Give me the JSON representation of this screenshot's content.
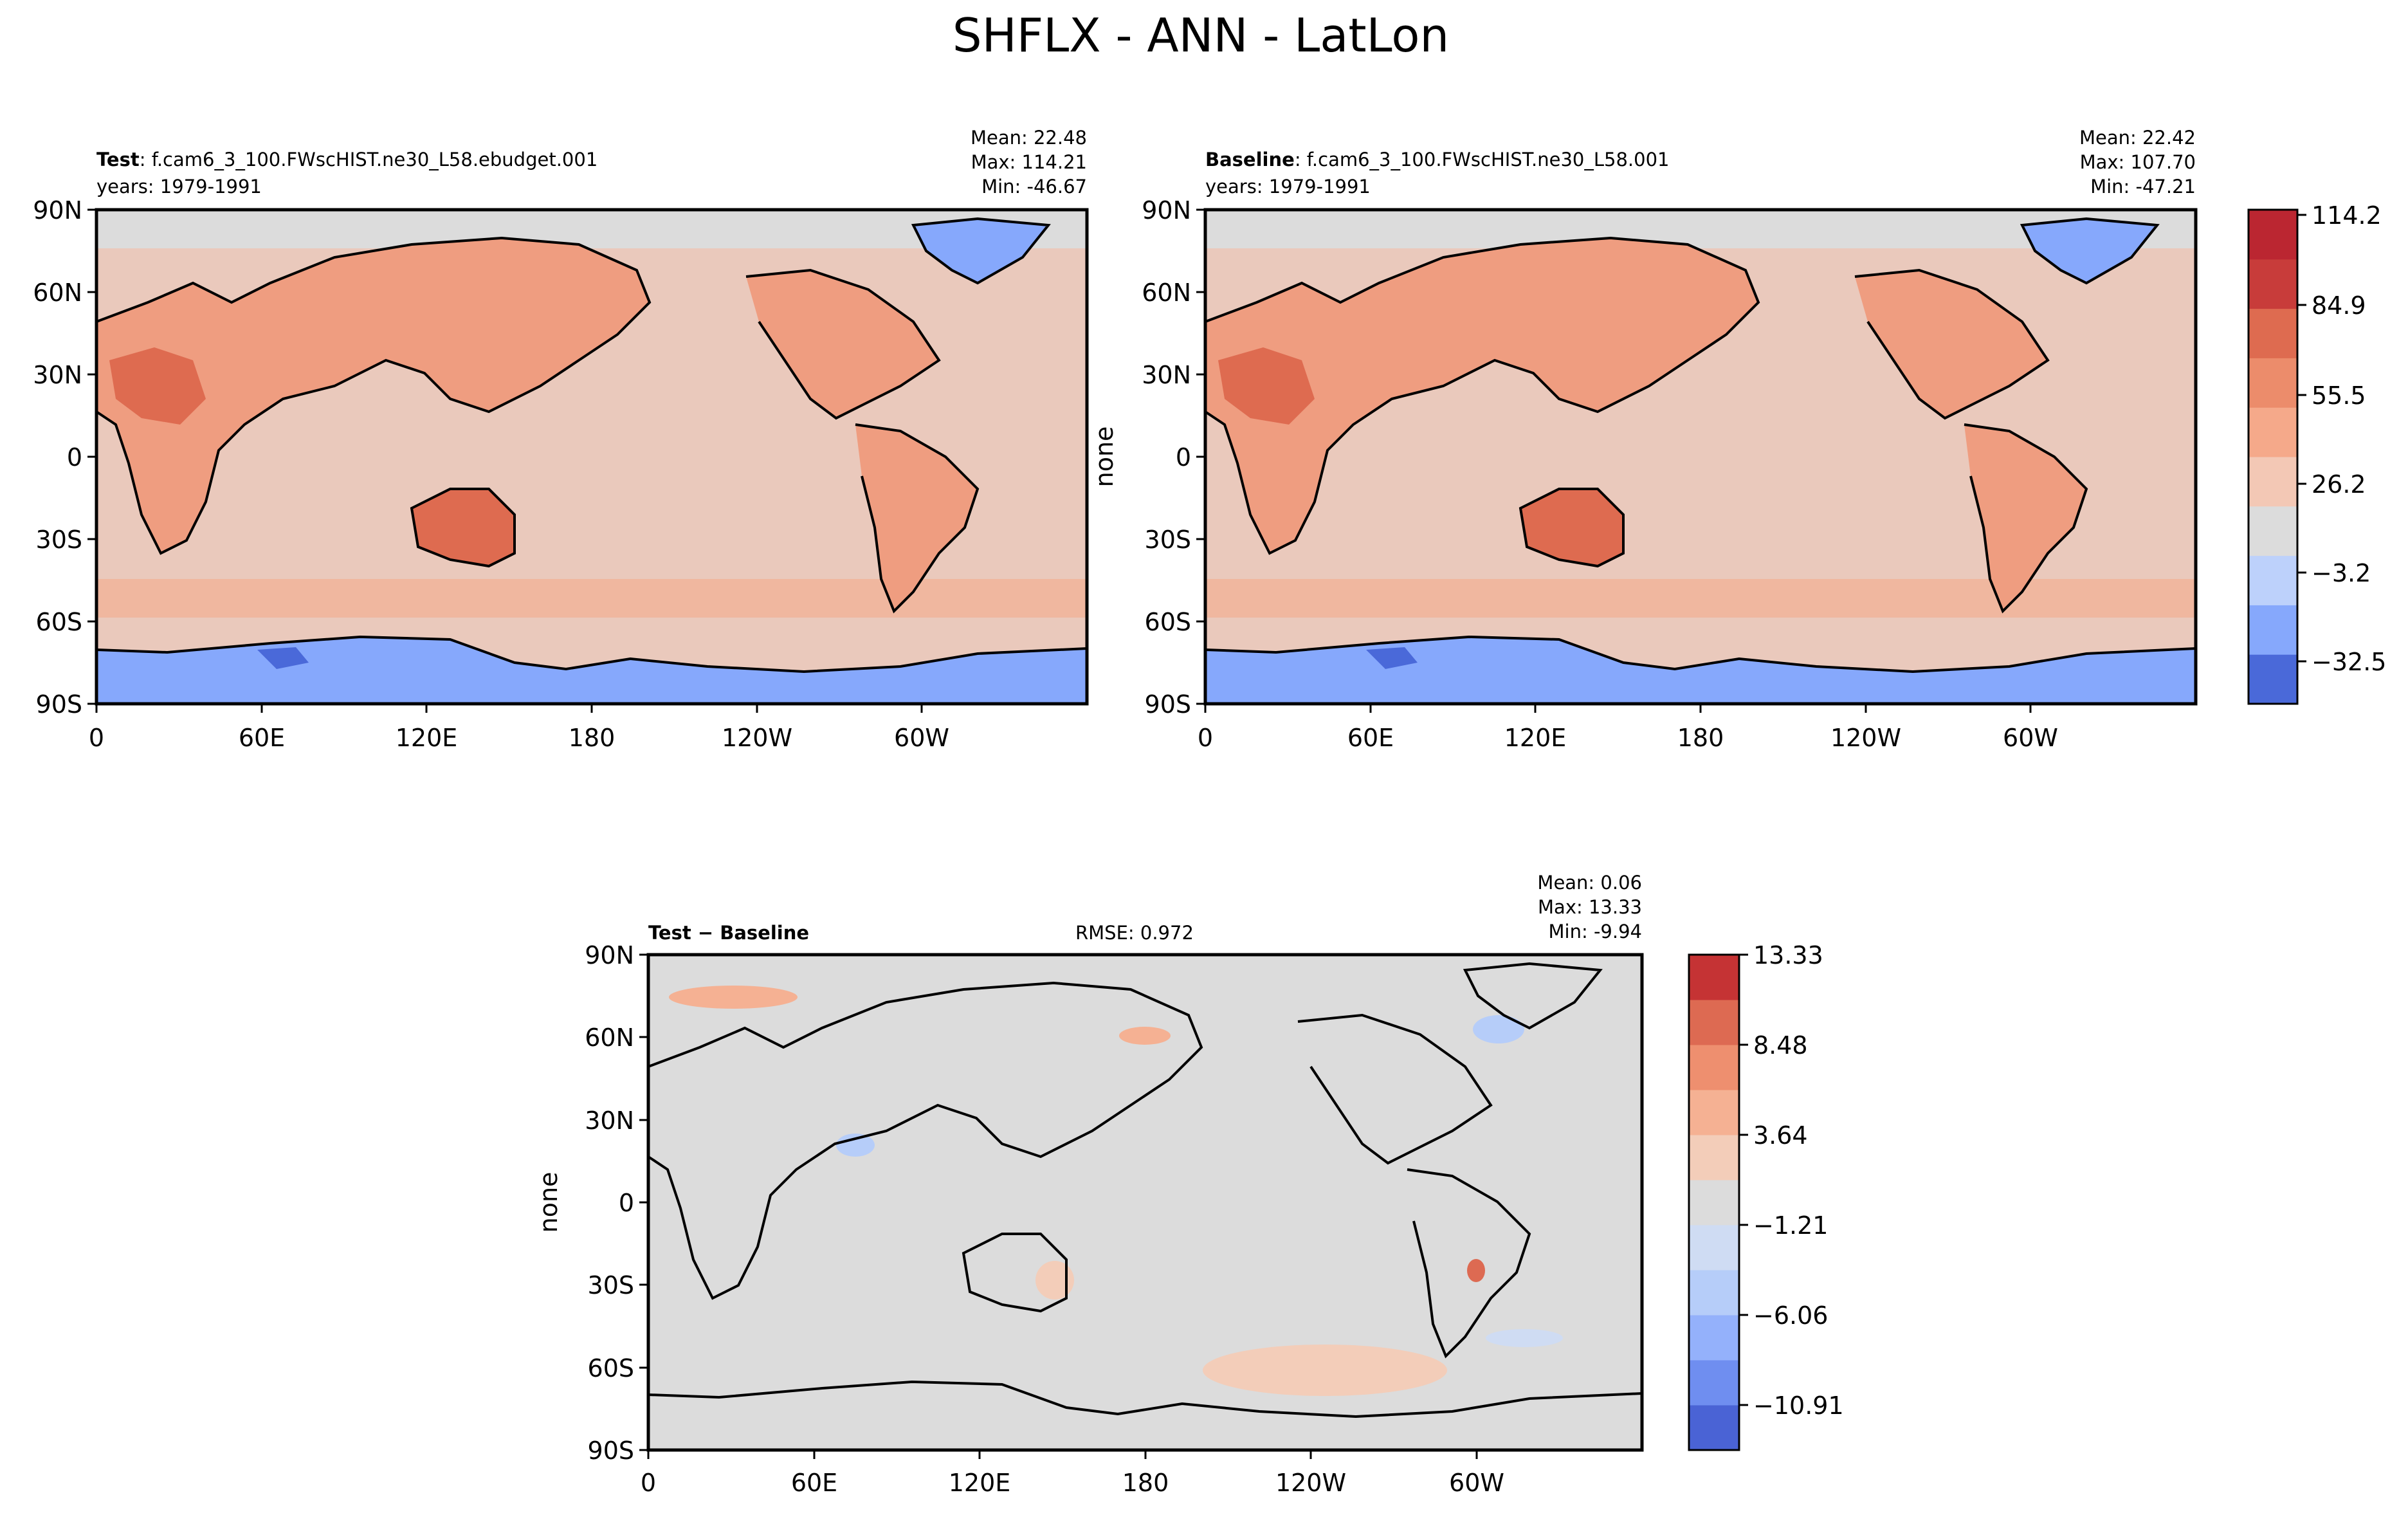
{
  "figure": {
    "title": "SHFLX - ANN - LatLon"
  },
  "chart_data": [
    {
      "type": "heatmap",
      "panel": "test",
      "label_bold": "Test",
      "label_rest": ": f.cam6_3_100.FWscHIST.ne30_L58.ebudget.001",
      "years": "years: 1979-1991",
      "stats": [
        "Mean: 22.48",
        "Max: 114.21",
        "Min: -46.67"
      ],
      "ylabel": "",
      "x_ticks": [
        "0",
        "60E",
        "120E",
        "180",
        "120W",
        "60W"
      ],
      "y_ticks": [
        "90N",
        "60N",
        "30N",
        "0",
        "30S",
        "60S",
        "90S"
      ],
      "xlim": [
        0,
        360
      ],
      "ylim": [
        -90,
        90
      ],
      "colorbar_ref": "main"
    },
    {
      "type": "heatmap",
      "panel": "baseline",
      "label_bold": "Baseline",
      "label_rest": ": f.cam6_3_100.FWscHIST.ne30_L58.001",
      "years": "years: 1979-1991",
      "stats": [
        "Mean: 22.42",
        "Max: 107.70",
        "Min: -47.21"
      ],
      "ylabel": "none",
      "x_ticks": [
        "0",
        "60E",
        "120E",
        "180",
        "120W",
        "60W"
      ],
      "y_ticks": [
        "90N",
        "60N",
        "30N",
        "0",
        "30S",
        "60S",
        "90S"
      ],
      "xlim": [
        0,
        360
      ],
      "ylim": [
        -90,
        90
      ],
      "colorbar_ref": "main"
    },
    {
      "type": "heatmap",
      "panel": "difference",
      "label_bold": "Test − Baseline",
      "label_rest": "",
      "rmse": "RMSE: 0.972",
      "stats": [
        "Mean:  0.06",
        "Max: 13.33",
        "Min: -9.94"
      ],
      "ylabel": "none",
      "x_ticks": [
        "0",
        "60E",
        "120E",
        "180",
        "120W",
        "60W"
      ],
      "y_ticks": [
        "90N",
        "60N",
        "30N",
        "0",
        "30S",
        "60S",
        "90S"
      ],
      "xlim": [
        0,
        360
      ],
      "ylim": [
        -90,
        90
      ],
      "colorbar_ref": "diff"
    }
  ],
  "colorbars": {
    "main": {
      "ticks": [
        "114.2",
        "84.9",
        "55.5",
        "26.2",
        "−3.2",
        "−32.5"
      ],
      "colors": [
        "#4a69d9",
        "#86a8fc",
        "#bdd1fb",
        "#dcdcdc",
        "#f3c8b5",
        "#f5a98a",
        "#ec8c6b",
        "#de6b50",
        "#c83c3a",
        "#bb2631"
      ]
    },
    "diff": {
      "ticks": [
        "13.33",
        "8.48",
        "3.64",
        "−1.21",
        "−6.06",
        "−10.91"
      ],
      "colors": [
        "#4a63d5",
        "#6f8ef0",
        "#94b1fb",
        "#b6cdf9",
        "#cfdcf3",
        "#dcdcdc",
        "#f3cdb9",
        "#f5b193",
        "#ee8f6f",
        "#dd6a52",
        "#c53334"
      ]
    }
  },
  "palette": {
    "ocean_main": "#eac9bc",
    "land_warm": "#ef9d80",
    "land_hot": "#de6b50",
    "neutral": "#dcdcdc",
    "ice": "#86a8fc",
    "ice_dark": "#4a69d9",
    "diff_bg": "#dcdcdc",
    "diff_warm": "#f5b193",
    "diff_cool": "#b6cdf9",
    "diff_red": "#dd6a52"
  }
}
